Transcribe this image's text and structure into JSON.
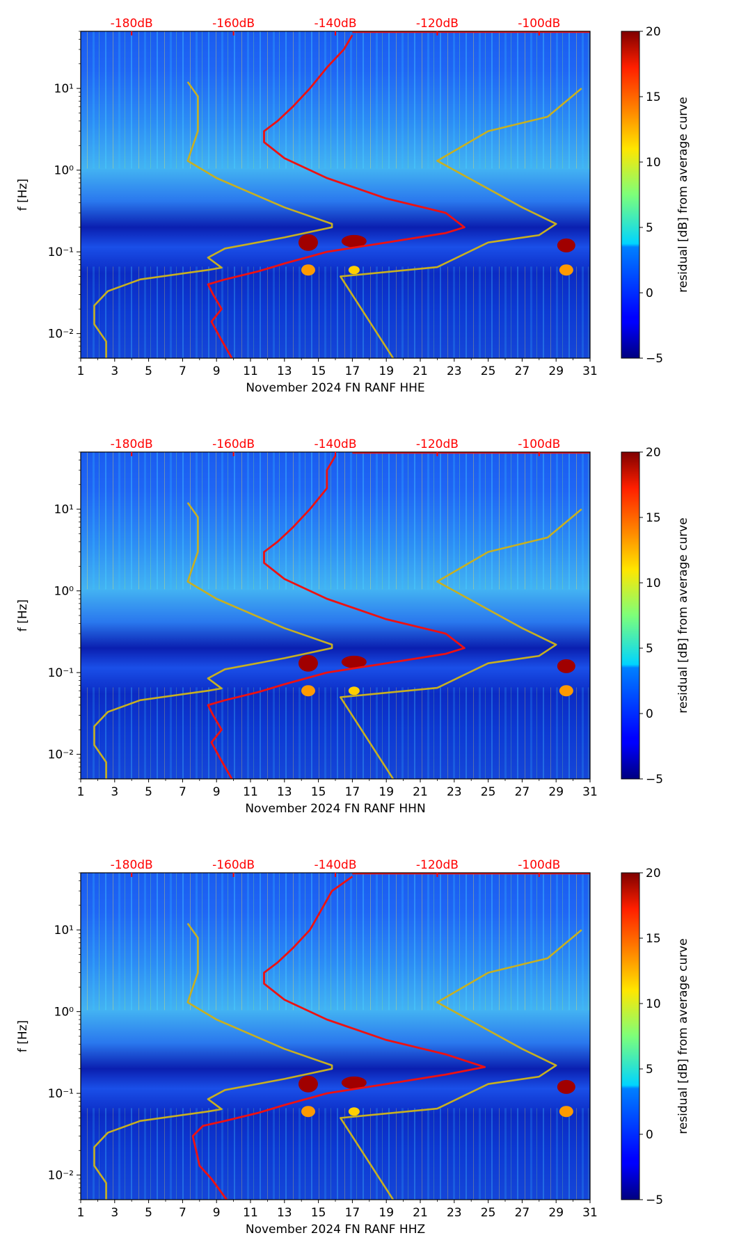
{
  "chart_data": [
    {
      "type": "heatmap",
      "xlabel": "November 2024 FN RANF  HHE",
      "ylabel": "f [Hz]",
      "colorbar_label": "residual [dB] from average curve",
      "x_range": [
        1,
        31
      ],
      "x_ticks": [
        1,
        3,
        5,
        7,
        9,
        11,
        13,
        15,
        17,
        19,
        21,
        23,
        25,
        27,
        29,
        31
      ],
      "y_scale": "log",
      "y_range": [
        0.005,
        50
      ],
      "y_ticks": [
        {
          "value": 0.01,
          "label": "10⁻²"
        },
        {
          "value": 0.1,
          "label": "10⁻¹"
        },
        {
          "value": 1,
          "label": "10⁰"
        },
        {
          "value": 10,
          "label": "10¹"
        }
      ],
      "color_range": [
        -5,
        20
      ],
      "colorbar_ticks": [
        -5,
        0,
        5,
        10,
        15,
        20
      ],
      "top_axis_ticks": [
        "-180dB",
        "-160dB",
        "-140dB",
        "-120dB",
        "-100dB"
      ],
      "top_axis_positions": [
        4,
        10,
        16,
        22,
        28
      ],
      "red_curve": [
        [
          9.9,
          0.005
        ],
        [
          9.2,
          0.009
        ],
        [
          8.7,
          0.014
        ],
        [
          9.3,
          0.02
        ],
        [
          8.8,
          0.03
        ],
        [
          8.5,
          0.04
        ],
        [
          9.5,
          0.046
        ],
        [
          11.5,
          0.058
        ],
        [
          13,
          0.072
        ],
        [
          15.5,
          0.1
        ],
        [
          19,
          0.13
        ],
        [
          22.5,
          0.17
        ],
        [
          23.6,
          0.2
        ],
        [
          22.5,
          0.3
        ],
        [
          19,
          0.45
        ],
        [
          15.5,
          0.8
        ],
        [
          13,
          1.4
        ],
        [
          11.8,
          2.2
        ],
        [
          11.8,
          3
        ],
        [
          12.6,
          4
        ],
        [
          13.5,
          6
        ],
        [
          14.5,
          10
        ],
        [
          15.5,
          18
        ],
        [
          16.5,
          30
        ],
        [
          17,
          45
        ]
      ],
      "olive_curve": [
        [
          2.5,
          0.005
        ],
        [
          2.5,
          0.008
        ],
        [
          1.8,
          0.013
        ],
        [
          1.8,
          0.022
        ],
        [
          2.6,
          0.033
        ],
        [
          4.5,
          0.046
        ],
        [
          8.5,
          0.06
        ],
        [
          9.3,
          0.064
        ],
        [
          8.5,
          0.085
        ],
        [
          9.5,
          0.11
        ],
        [
          13,
          0.15
        ],
        [
          15.8,
          0.2
        ],
        [
          15.8,
          0.22
        ],
        [
          13,
          0.35
        ],
        [
          9,
          0.8
        ],
        [
          7.3,
          1.3
        ],
        [
          7.9,
          3
        ],
        [
          7.9,
          8
        ],
        [
          7.3,
          12
        ]
      ],
      "olive_curve_2": [
        [
          19.4,
          0.005
        ],
        [
          16.3,
          0.05
        ],
        [
          22,
          0.065
        ],
        [
          25,
          0.13
        ],
        [
          28,
          0.16
        ],
        [
          29,
          0.22
        ],
        [
          27,
          0.35
        ],
        [
          22,
          1.3
        ],
        [
          25,
          3
        ],
        [
          28.5,
          4.5
        ],
        [
          30.5,
          10
        ]
      ]
    },
    {
      "type": "heatmap",
      "xlabel": "November 2024 FN RANF  HHN",
      "ylabel": "f [Hz]",
      "colorbar_label": "residual [dB] from average curve",
      "x_range": [
        1,
        31
      ],
      "x_ticks": [
        1,
        3,
        5,
        7,
        9,
        11,
        13,
        15,
        17,
        19,
        21,
        23,
        25,
        27,
        29,
        31
      ],
      "y_scale": "log",
      "y_range": [
        0.005,
        50
      ],
      "y_ticks": [
        {
          "value": 0.01,
          "label": "10⁻²"
        },
        {
          "value": 0.1,
          "label": "10⁻¹"
        },
        {
          "value": 1,
          "label": "10⁰"
        },
        {
          "value": 10,
          "label": "10¹"
        }
      ],
      "color_range": [
        -5,
        20
      ],
      "colorbar_ticks": [
        -5,
        0,
        5,
        10,
        15,
        20
      ],
      "top_axis_ticks": [
        "-180dB",
        "-160dB",
        "-140dB",
        "-120dB",
        "-100dB"
      ],
      "top_axis_positions": [
        4,
        10,
        16,
        22,
        28
      ],
      "red_curve": [
        [
          9.9,
          0.005
        ],
        [
          9.2,
          0.009
        ],
        [
          8.7,
          0.014
        ],
        [
          9.3,
          0.02
        ],
        [
          8.8,
          0.03
        ],
        [
          8.5,
          0.04
        ],
        [
          9.5,
          0.046
        ],
        [
          11.5,
          0.058
        ],
        [
          13,
          0.072
        ],
        [
          15.5,
          0.1
        ],
        [
          19,
          0.13
        ],
        [
          22.5,
          0.17
        ],
        [
          23.6,
          0.2
        ],
        [
          22.5,
          0.3
        ],
        [
          19,
          0.45
        ],
        [
          15.5,
          0.8
        ],
        [
          13,
          1.4
        ],
        [
          11.8,
          2.2
        ],
        [
          11.8,
          3
        ],
        [
          12.6,
          4
        ],
        [
          13.5,
          6
        ],
        [
          14.5,
          10
        ],
        [
          15.5,
          18
        ],
        [
          15.5,
          30
        ],
        [
          16,
          45
        ]
      ],
      "olive_curve": [
        [
          2.5,
          0.005
        ],
        [
          2.5,
          0.008
        ],
        [
          1.8,
          0.013
        ],
        [
          1.8,
          0.022
        ],
        [
          2.6,
          0.033
        ],
        [
          4.5,
          0.046
        ],
        [
          8.5,
          0.06
        ],
        [
          9.3,
          0.064
        ],
        [
          8.5,
          0.085
        ],
        [
          9.5,
          0.11
        ],
        [
          13,
          0.15
        ],
        [
          15.8,
          0.2
        ],
        [
          15.8,
          0.22
        ],
        [
          13,
          0.35
        ],
        [
          9,
          0.8
        ],
        [
          7.3,
          1.3
        ],
        [
          7.9,
          3
        ],
        [
          7.9,
          8
        ],
        [
          7.3,
          12
        ]
      ],
      "olive_curve_2": [
        [
          19.4,
          0.005
        ],
        [
          16.3,
          0.05
        ],
        [
          22,
          0.065
        ],
        [
          25,
          0.13
        ],
        [
          28,
          0.16
        ],
        [
          29,
          0.22
        ],
        [
          27,
          0.35
        ],
        [
          22,
          1.3
        ],
        [
          25,
          3
        ],
        [
          28.5,
          4.5
        ],
        [
          30.5,
          10
        ]
      ]
    },
    {
      "type": "heatmap",
      "xlabel": "November 2024 FN RANF  HHZ",
      "ylabel": "f [Hz]",
      "colorbar_label": "residual [dB] from average curve",
      "x_range": [
        1,
        31
      ],
      "x_ticks": [
        1,
        3,
        5,
        7,
        9,
        11,
        13,
        15,
        17,
        19,
        21,
        23,
        25,
        27,
        29,
        31
      ],
      "y_scale": "log",
      "y_range": [
        0.005,
        50
      ],
      "y_ticks": [
        {
          "value": 0.01,
          "label": "10⁻²"
        },
        {
          "value": 0.1,
          "label": "10⁻¹"
        },
        {
          "value": 1,
          "label": "10⁰"
        },
        {
          "value": 10,
          "label": "10¹"
        }
      ],
      "color_range": [
        -5,
        20
      ],
      "colorbar_ticks": [
        -5,
        0,
        5,
        10,
        15,
        20
      ],
      "top_axis_ticks": [
        "-180dB",
        "-160dB",
        "-140dB",
        "-120dB",
        "-100dB"
      ],
      "top_axis_positions": [
        4,
        10,
        16,
        22,
        28
      ],
      "red_curve": [
        [
          9.6,
          0.005
        ],
        [
          8.7,
          0.009
        ],
        [
          8,
          0.013
        ],
        [
          7.8,
          0.02
        ],
        [
          7.6,
          0.03
        ],
        [
          8.2,
          0.04
        ],
        [
          9.5,
          0.046
        ],
        [
          11.5,
          0.058
        ],
        [
          13,
          0.072
        ],
        [
          15.5,
          0.1
        ],
        [
          19,
          0.13
        ],
        [
          22.5,
          0.17
        ],
        [
          24.8,
          0.21
        ],
        [
          22.5,
          0.3
        ],
        [
          19,
          0.45
        ],
        [
          15.5,
          0.8
        ],
        [
          13,
          1.4
        ],
        [
          11.8,
          2.2
        ],
        [
          11.8,
          3
        ],
        [
          12.6,
          4
        ],
        [
          13.5,
          6
        ],
        [
          14.5,
          10
        ],
        [
          15.2,
          18
        ],
        [
          15.8,
          30
        ],
        [
          17,
          45
        ]
      ],
      "olive_curve": [
        [
          2.5,
          0.005
        ],
        [
          2.5,
          0.008
        ],
        [
          1.8,
          0.013
        ],
        [
          1.8,
          0.022
        ],
        [
          2.6,
          0.033
        ],
        [
          4.5,
          0.046
        ],
        [
          8.5,
          0.06
        ],
        [
          9.3,
          0.064
        ],
        [
          8.5,
          0.085
        ],
        [
          9.5,
          0.11
        ],
        [
          13,
          0.15
        ],
        [
          15.8,
          0.2
        ],
        [
          15.8,
          0.22
        ],
        [
          13,
          0.35
        ],
        [
          9,
          0.8
        ],
        [
          7.3,
          1.3
        ],
        [
          7.9,
          3
        ],
        [
          7.9,
          8
        ],
        [
          7.3,
          12
        ]
      ],
      "olive_curve_2": [
        [
          19.4,
          0.005
        ],
        [
          16.3,
          0.05
        ],
        [
          22,
          0.065
        ],
        [
          25,
          0.13
        ],
        [
          28,
          0.16
        ],
        [
          29,
          0.22
        ],
        [
          27,
          0.35
        ],
        [
          22,
          1.3
        ],
        [
          25,
          3
        ],
        [
          28.5,
          4.5
        ],
        [
          30.5,
          10
        ]
      ]
    }
  ],
  "colors": {
    "curve_red": "#ee1111",
    "curve_olive": "#c8b020",
    "top_label": "#ff0000"
  }
}
